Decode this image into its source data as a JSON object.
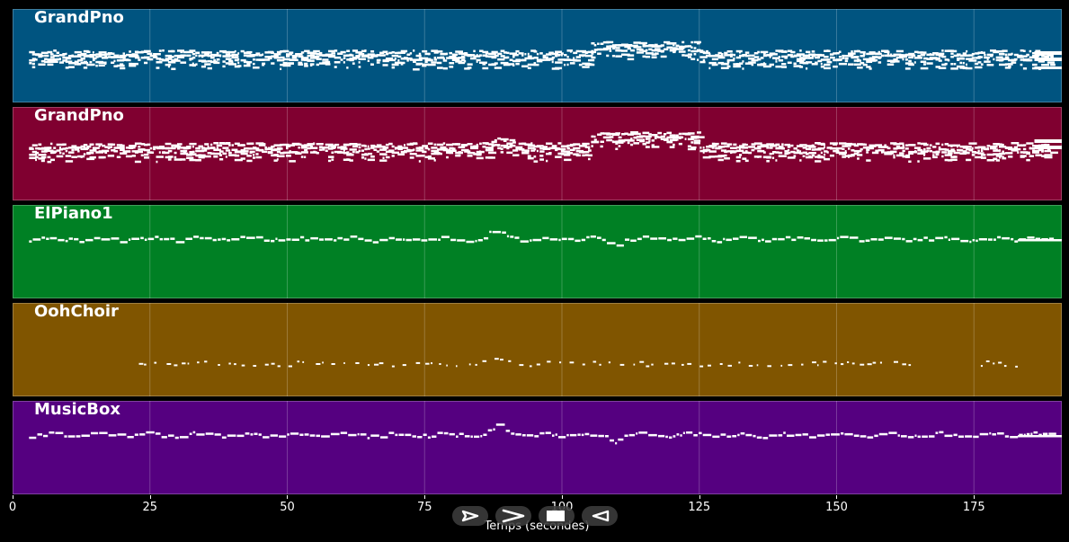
{
  "chart_data": {
    "type": "piano-roll",
    "xlabel": "Temps (secondes)",
    "xlim": [
      0,
      191
    ],
    "xticks": [
      0,
      25,
      50,
      75,
      100,
      125,
      150,
      175
    ],
    "grid": true,
    "tracks": [
      {
        "name": "GrandPno",
        "color": "#005480",
        "density": "dense-chords"
      },
      {
        "name": "GrandPno",
        "color": "#800030",
        "density": "dense-chords"
      },
      {
        "name": "ElPiano1",
        "color": "#008024",
        "density": "melody"
      },
      {
        "name": "OohChoir",
        "color": "#805500",
        "density": "sparse"
      },
      {
        "name": "MusicBox",
        "color": "#550080",
        "density": "melody"
      }
    ]
  },
  "controls": [
    {
      "name": "play-button",
      "icon": "play-outline-icon"
    },
    {
      "name": "forward-button",
      "icon": "chevron-right-icon"
    },
    {
      "name": "stop-button",
      "icon": "stop-icon"
    },
    {
      "name": "rewind-button",
      "icon": "play-reverse-outline-icon"
    }
  ]
}
